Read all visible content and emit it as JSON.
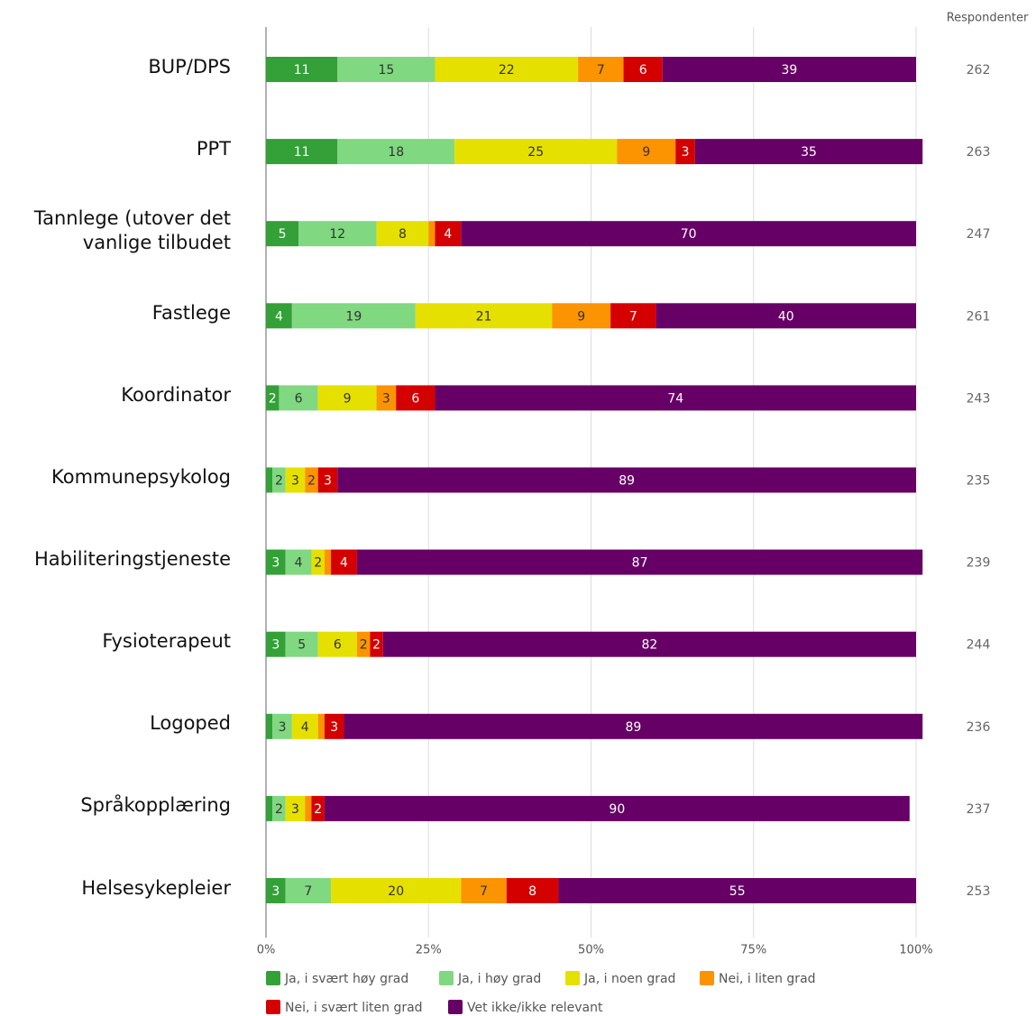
{
  "chart_data": {
    "type": "stacked-bar-horizontal",
    "categories": [
      "BUP/DPS",
      "PPT",
      "Tannlege (utover det vanlige tilbudet",
      "Fastlege",
      "Koordinator",
      "Kommunepsykolog",
      "Habiliteringstjeneste",
      "Fysioterapeut",
      "Logoped",
      "Språkopplæring",
      "Helsesykepleier"
    ],
    "series": [
      {
        "name": "Ja, i svært høy grad",
        "color": "#34a038",
        "values": [
          11,
          11,
          5,
          4,
          2,
          1,
          3,
          3,
          1,
          1,
          3
        ]
      },
      {
        "name": "Ja, i høy grad",
        "color": "#80d880",
        "values": [
          15,
          18,
          12,
          19,
          6,
          2,
          4,
          5,
          3,
          2,
          7
        ]
      },
      {
        "name": "Ja, i noen grad",
        "color": "#e6e000",
        "values": [
          22,
          25,
          8,
          21,
          9,
          3,
          2,
          6,
          4,
          3,
          20
        ]
      },
      {
        "name": "Nei, i liten grad",
        "color": "#fb9400",
        "values": [
          7,
          9,
          1,
          9,
          3,
          2,
          1,
          2,
          1,
          1,
          7
        ]
      },
      {
        "name": "Nei, i svært liten grad",
        "color": "#d40000",
        "values": [
          6,
          3,
          4,
          7,
          6,
          3,
          4,
          2,
          3,
          2,
          8
        ]
      },
      {
        "name": "Vet ikke/ikke relevant",
        "color": "#660066",
        "values": [
          39,
          35,
          70,
          40,
          74,
          89,
          87,
          82,
          89,
          90,
          55
        ]
      }
    ],
    "xlim": [
      0,
      100
    ],
    "xticks": [
      {
        "value": 0,
        "label": "0%"
      },
      {
        "value": 25,
        "label": "25%"
      },
      {
        "value": 50,
        "label": "50%"
      },
      {
        "value": 75,
        "label": "75%"
      },
      {
        "value": 100,
        "label": "100%"
      }
    ],
    "grid": true,
    "respondents_header": "Respondenter",
    "respondents": [
      262,
      263,
      247,
      261,
      243,
      235,
      239,
      244,
      236,
      237,
      253
    ],
    "legend": "bottom"
  }
}
